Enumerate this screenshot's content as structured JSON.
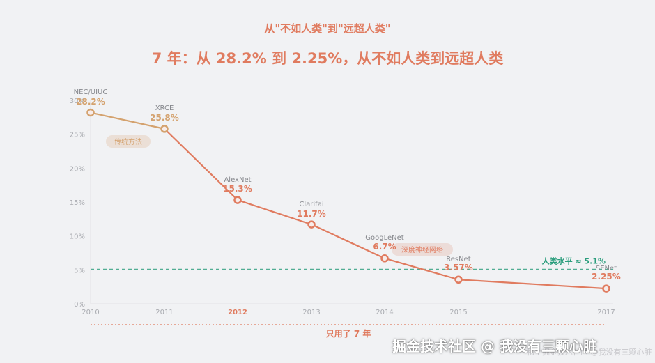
{
  "header": {
    "supertitle": "从\"不如人类\"到\"远超人类\"",
    "title": "7 年：从 28.2% 到 2.25%，从不如人类到远超人类"
  },
  "chart_data": {
    "type": "line",
    "title": "7 年：从 28.2% 到 2.25%，从不如人类到远超人类",
    "xlabel": "",
    "ylabel": "",
    "categories": [
      "2010",
      "2011",
      "2012",
      "2013",
      "2014",
      "2015",
      "2017"
    ],
    "highlight_category": "2012",
    "ylim": [
      0,
      30
    ],
    "yticks": [
      "0%",
      "5%",
      "10%",
      "15%",
      "20%",
      "25%",
      "30%"
    ],
    "grid": false,
    "series": [
      {
        "values": [
          28.2,
          25.8,
          15.3,
          11.7,
          6.7,
          3.57,
          2.25
        ],
        "value_labels": [
          "28.2%",
          "25.8%",
          "15.3%",
          "11.7%",
          "6.7%",
          "3.57%",
          "2.25%"
        ],
        "point_names": [
          "NEC/UIUC",
          "XRCE",
          "AlexNet",
          "Clarifai",
          "GoogLeNet",
          "ResNet",
          "SENet"
        ],
        "traditional_color": "#d4a26e",
        "deep_color": "#e07b5f"
      }
    ],
    "reference_line": {
      "value": 5.1,
      "label": "人类水平 ≈ 5.1%",
      "color": "#2a9d7c"
    },
    "annotations": [
      {
        "text": "传统方法",
        "color": "#d4a26e"
      },
      {
        "text": "深度神经网络",
        "color": "#e07b5f"
      }
    ]
  },
  "footer": {
    "note": "只用了 7 年",
    "watermark_faint": "稀土掘金技术社区 @我没有三颗心脏",
    "watermark": "掘金技术社区 @ 我没有三颗心脏"
  }
}
